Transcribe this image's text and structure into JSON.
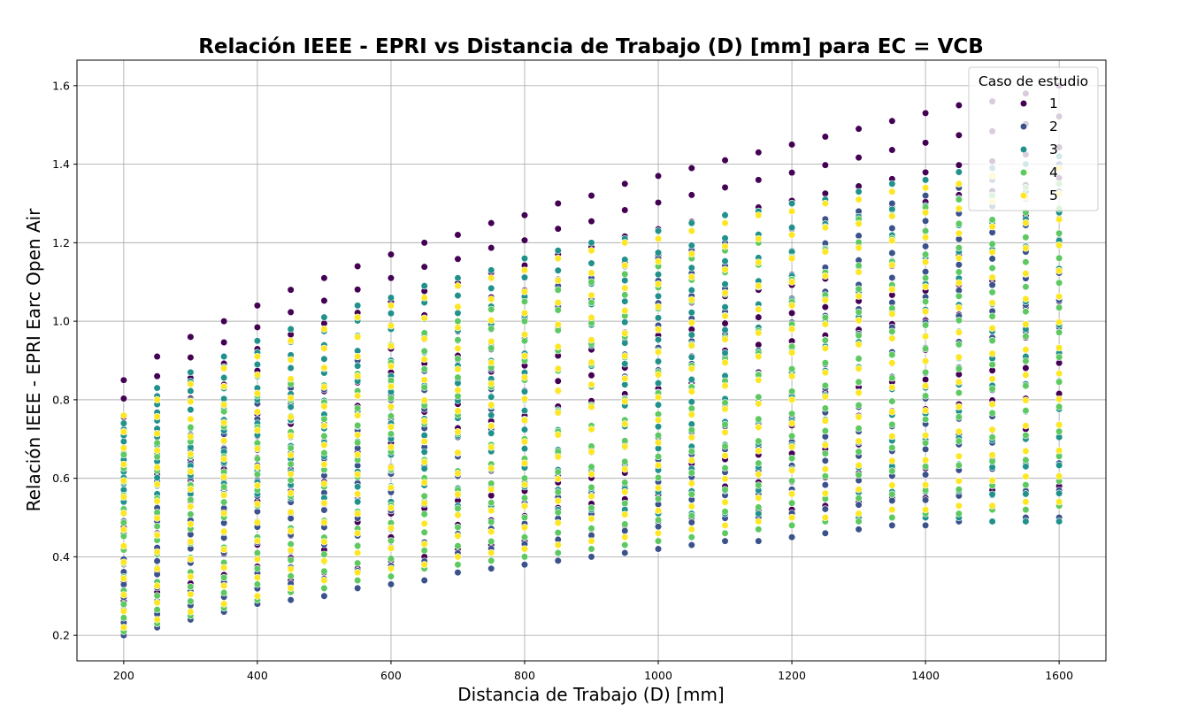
{
  "chart_data": {
    "type": "scatter",
    "title": "Relación IEEE - EPRI vs Distancia de Trabajo (D) [mm] para EC = VCB",
    "xlabel": "Distancia de Trabajo (D) [mm]",
    "ylabel": "Relación IEEE - EPRI Earc Open Air",
    "xlim": [
      130,
      1670
    ],
    "ylim": [
      0.135,
      1.665
    ],
    "xticks": [
      200,
      400,
      600,
      800,
      1000,
      1200,
      1400,
      1600
    ],
    "yticks": [
      0.2,
      0.4,
      0.6,
      0.8,
      1.0,
      1.2,
      1.4,
      1.6
    ],
    "xtick_labels": [
      "200",
      "400",
      "600",
      "800",
      "1000",
      "1200",
      "1400",
      "1600"
    ],
    "ytick_labels": [
      "0.2",
      "0.4",
      "0.6",
      "0.8",
      "1.0",
      "1.2",
      "1.4",
      "1.6"
    ],
    "grid": true,
    "x": [
      200,
      250,
      300,
      350,
      400,
      450,
      500,
      550,
      600,
      650,
      700,
      750,
      800,
      850,
      900,
      950,
      1000,
      1050,
      1100,
      1150,
      1200,
      1250,
      1300,
      1350,
      1400,
      1450,
      1500,
      1550,
      1600
    ],
    "legend": {
      "title": "Caso de estudio",
      "placement": "top-right"
    },
    "series": [
      {
        "name": "1",
        "color": "#440154",
        "upper_envelope": [
          0.85,
          0.91,
          0.96,
          1.0,
          1.04,
          1.08,
          1.11,
          1.14,
          1.17,
          1.2,
          1.22,
          1.25,
          1.27,
          1.3,
          1.32,
          1.35,
          1.37,
          1.39,
          1.41,
          1.43,
          1.45,
          1.47,
          1.49,
          1.51,
          1.53,
          1.55,
          1.56,
          1.58,
          1.6
        ],
        "lower_envelope": [
          0.24,
          0.26,
          0.28,
          0.3,
          0.32,
          0.34,
          0.36,
          0.37,
          0.39,
          0.4,
          0.42,
          0.43,
          0.44,
          0.46,
          0.47,
          0.48,
          0.49,
          0.5,
          0.51,
          0.52,
          0.52,
          0.53,
          0.54,
          0.55,
          0.55,
          0.56,
          0.57,
          0.57,
          0.58
        ]
      },
      {
        "name": "2",
        "color": "#3b528b",
        "upper_envelope": [
          0.62,
          0.66,
          0.71,
          0.75,
          0.79,
          0.83,
          0.87,
          0.9,
          0.94,
          0.97,
          1.0,
          1.03,
          1.06,
          1.09,
          1.11,
          1.14,
          1.16,
          1.18,
          1.2,
          1.22,
          1.24,
          1.26,
          1.28,
          1.3,
          1.32,
          1.34,
          1.36,
          1.38,
          1.4
        ],
        "lower_envelope": [
          0.2,
          0.22,
          0.24,
          0.26,
          0.28,
          0.29,
          0.3,
          0.32,
          0.33,
          0.34,
          0.36,
          0.37,
          0.38,
          0.39,
          0.4,
          0.41,
          0.42,
          0.43,
          0.44,
          0.44,
          0.45,
          0.46,
          0.47,
          0.48,
          0.48,
          0.49,
          0.49,
          0.5,
          0.5
        ]
      },
      {
        "name": "3",
        "color": "#21918c",
        "upper_envelope": [
          0.74,
          0.83,
          0.87,
          0.91,
          0.95,
          0.98,
          1.01,
          1.04,
          1.06,
          1.09,
          1.11,
          1.13,
          1.16,
          1.18,
          1.2,
          1.21,
          1.23,
          1.25,
          1.27,
          1.28,
          1.3,
          1.31,
          1.33,
          1.35,
          1.36,
          1.38,
          1.39,
          1.4,
          1.42
        ],
        "lower_envelope": [
          0.54,
          0.56,
          0.56,
          0.56,
          0.56,
          0.55,
          0.55,
          0.54,
          0.54,
          0.54,
          0.53,
          0.53,
          0.53,
          0.52,
          0.52,
          0.52,
          0.51,
          0.51,
          0.51,
          0.51,
          0.5,
          0.5,
          0.5,
          0.5,
          0.5,
          0.5,
          0.49,
          0.49,
          0.49
        ]
      },
      {
        "name": "4",
        "color": "#5ec962",
        "upper_envelope": [
          0.66,
          0.69,
          0.73,
          0.77,
          0.81,
          0.84,
          0.88,
          0.91,
          0.94,
          0.97,
          1.0,
          1.03,
          1.05,
          1.08,
          1.1,
          1.12,
          1.14,
          1.16,
          1.18,
          1.2,
          1.22,
          1.24,
          1.26,
          1.27,
          1.29,
          1.31,
          1.32,
          1.34,
          1.35
        ],
        "lower_envelope": [
          0.21,
          0.23,
          0.25,
          0.27,
          0.29,
          0.31,
          0.32,
          0.34,
          0.35,
          0.37,
          0.38,
          0.39,
          0.4,
          0.41,
          0.42,
          0.43,
          0.44,
          0.45,
          0.46,
          0.47,
          0.48,
          0.49,
          0.49,
          0.5,
          0.51,
          0.51,
          0.52,
          0.52,
          0.53
        ]
      },
      {
        "name": "5",
        "color": "#fde725",
        "upper_envelope": [
          0.76,
          0.8,
          0.84,
          0.88,
          0.91,
          0.95,
          0.98,
          1.01,
          1.04,
          1.06,
          1.09,
          1.11,
          1.13,
          1.16,
          1.18,
          1.2,
          1.21,
          1.23,
          1.25,
          1.27,
          1.28,
          1.3,
          1.31,
          1.33,
          1.34,
          1.35,
          1.37,
          1.38,
          1.39
        ],
        "lower_envelope": [
          0.22,
          0.24,
          0.26,
          0.28,
          0.3,
          0.32,
          0.34,
          0.36,
          0.37,
          0.38,
          0.4,
          0.41,
          0.42,
          0.43,
          0.44,
          0.45,
          0.46,
          0.47,
          0.48,
          0.49,
          0.5,
          0.5,
          0.51,
          0.52,
          0.52,
          0.53,
          0.53,
          0.54,
          0.54
        ]
      }
    ]
  }
}
